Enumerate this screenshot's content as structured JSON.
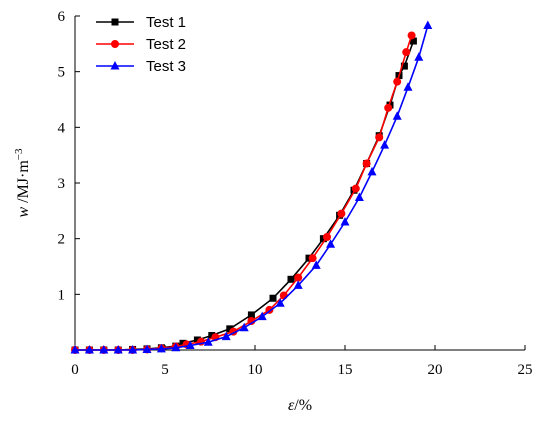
{
  "chart_data": {
    "type": "line",
    "title": "",
    "xlabel_var": "ε",
    "xlabel_unit": "/%",
    "ylabel_var": "w",
    "ylabel_unit": "/MJ·m",
    "ylabel_exp": "−3",
    "xlim": [
      0,
      25
    ],
    "ylim": [
      0,
      6
    ],
    "x_ticks": [
      0,
      5,
      10,
      15,
      20,
      25
    ],
    "y_ticks": [
      1,
      2,
      3,
      4,
      5,
      6
    ],
    "grid": false,
    "legend_position": "top-left",
    "series": [
      {
        "name": "Test 1",
        "color": "#000000",
        "marker": "square",
        "x": [
          0,
          0.8,
          1.6,
          2.4,
          3.2,
          4.0,
          4.8,
          5.6,
          6.0,
          6.8,
          7.6,
          8.6,
          9.8,
          11.0,
          12.0,
          13.0,
          13.8,
          14.7,
          15.5,
          16.2,
          16.9,
          17.5,
          18.0,
          18.3,
          18.8
        ],
        "y": [
          0,
          0,
          0,
          0,
          0.01,
          0.02,
          0.04,
          0.07,
          0.12,
          0.18,
          0.26,
          0.38,
          0.63,
          0.93,
          1.27,
          1.65,
          2.0,
          2.42,
          2.87,
          3.35,
          3.85,
          4.4,
          4.93,
          5.1,
          5.55
        ]
      },
      {
        "name": "Test 2",
        "color": "#ff0000",
        "marker": "circle",
        "x": [
          0,
          0.8,
          1.6,
          2.4,
          3.2,
          4.0,
          4.8,
          5.6,
          6.2,
          7.0,
          7.8,
          8.8,
          9.8,
          10.8,
          11.6,
          12.4,
          13.2,
          14.0,
          14.8,
          15.6,
          16.2,
          16.9,
          17.4,
          17.9,
          18.4,
          18.7
        ],
        "y": [
          0,
          0,
          0,
          0,
          0,
          0.01,
          0.03,
          0.06,
          0.1,
          0.15,
          0.23,
          0.33,
          0.52,
          0.72,
          0.98,
          1.3,
          1.65,
          2.03,
          2.45,
          2.9,
          3.35,
          3.82,
          4.35,
          4.82,
          5.35,
          5.65
        ]
      },
      {
        "name": "Test 3",
        "color": "#0000ff",
        "marker": "triangle",
        "x": [
          0,
          0.8,
          1.6,
          2.4,
          3.2,
          4.0,
          4.8,
          5.6,
          6.4,
          7.4,
          8.4,
          9.4,
          10.4,
          11.4,
          12.4,
          13.4,
          14.2,
          15.0,
          15.8,
          16.5,
          17.2,
          17.9,
          18.5,
          19.1,
          19.6
        ],
        "y": [
          0,
          0,
          0,
          0,
          0,
          0.01,
          0.02,
          0.04,
          0.08,
          0.14,
          0.24,
          0.4,
          0.6,
          0.84,
          1.16,
          1.52,
          1.9,
          2.3,
          2.74,
          3.2,
          3.68,
          4.2,
          4.72,
          5.26,
          5.83
        ]
      }
    ]
  }
}
